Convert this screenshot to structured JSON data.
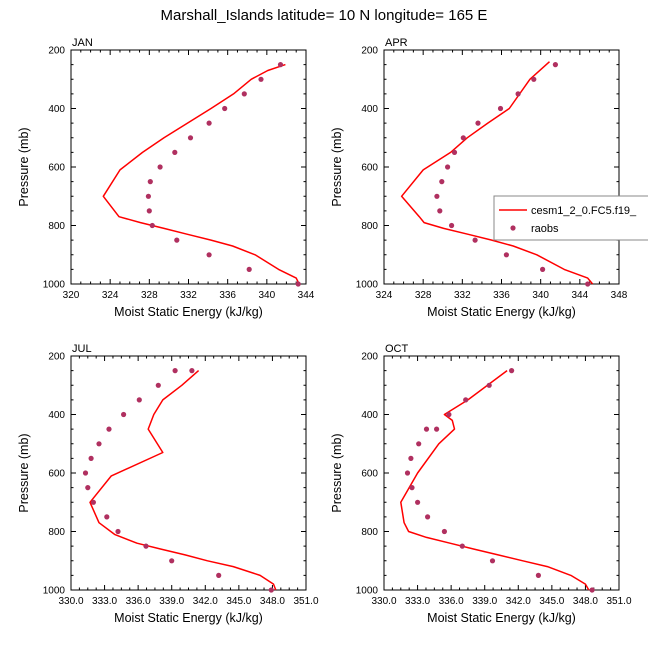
{
  "title": "Marshall_Islands  latitude= 10 N longitude= 165 E",
  "colors": {
    "model_line": "#ff0000",
    "obs_marker": "#b03060",
    "axis": "#000000"
  },
  "legend": {
    "model_label": "cesm1_2_0.FC5.f19_",
    "obs_label": "raobs"
  },
  "chart_data": [
    {
      "type": "line",
      "panel": "JAN",
      "xlabel": "Moist Static Energy (kJ/kg)",
      "ylabel": "Pressure (mb)",
      "xlim": [
        320,
        344
      ],
      "ylim": [
        1000,
        200
      ],
      "xticks": [
        320,
        324,
        328,
        332,
        336,
        340,
        344
      ],
      "xtick_labels": [
        "320",
        "324",
        "328",
        "332",
        "336",
        "340",
        "344"
      ],
      "yticks": [
        200,
        400,
        600,
        800,
        1000
      ],
      "ytick_labels": [
        "200",
        "400",
        "600",
        "800",
        "1000"
      ],
      "series": [
        {
          "name": "cesm1_2_0.FC5.f19_",
          "style": "line",
          "x": [
            343.3,
            343.0,
            341.2,
            338.8,
            336.5,
            334.3,
            331.9,
            329.5,
            327.1,
            324.9,
            323.3,
            325.0,
            327.3,
            329.5,
            331.9,
            334.3,
            336.6,
            338.4,
            340.1,
            341.9
          ],
          "y": [
            1000,
            980,
            950,
            900,
            870,
            850,
            830,
            810,
            790,
            770,
            700,
            610,
            550,
            500,
            450,
            400,
            350,
            300,
            270,
            250
          ]
        },
        {
          "name": "raobs",
          "style": "markers",
          "x": [
            343.2,
            338.2,
            334.1,
            330.8,
            328.3,
            328.0,
            327.9,
            328.1,
            329.1,
            330.6,
            332.2,
            334.1,
            335.7,
            337.7,
            339.4,
            341.4
          ],
          "y": [
            1000,
            950,
            900,
            850,
            800,
            750,
            700,
            650,
            600,
            550,
            500,
            450,
            400,
            350,
            300,
            250
          ]
        }
      ]
    },
    {
      "type": "line",
      "panel": "APR",
      "xlabel": "Moist Static Energy (kJ/kg)",
      "ylabel": "Pressure (mb)",
      "xlim": [
        324,
        348
      ],
      "ylim": [
        1000,
        200
      ],
      "xticks": [
        324,
        328,
        332,
        336,
        340,
        344,
        348
      ],
      "xtick_labels": [
        "324",
        "328",
        "332",
        "336",
        "340",
        "344",
        "348"
      ],
      "yticks": [
        200,
        400,
        600,
        800,
        1000
      ],
      "ytick_labels": [
        "200",
        "400",
        "600",
        "800",
        "1000"
      ],
      "series": [
        {
          "name": "cesm1_2_0.FC5.f19_",
          "style": "line",
          "x": [
            345.3,
            344.8,
            342.4,
            339.6,
            337.2,
            335.0,
            332.6,
            330.1,
            328.1,
            327.6,
            325.8,
            328.0,
            330.8,
            332.5,
            334.6,
            336.8,
            338.9,
            340.9
          ],
          "y": [
            1000,
            980,
            950,
            900,
            870,
            850,
            830,
            810,
            790,
            770,
            700,
            610,
            550,
            500,
            450,
            400,
            300,
            240
          ]
        },
        {
          "name": "raobs",
          "style": "markers",
          "x": [
            344.8,
            340.2,
            336.5,
            333.3,
            330.9,
            329.7,
            329.4,
            329.9,
            330.5,
            331.2,
            332.1,
            333.6,
            335.9,
            337.7,
            339.3,
            341.5
          ],
          "y": [
            1000,
            950,
            900,
            850,
            800,
            750,
            700,
            650,
            600,
            550,
            500,
            450,
            400,
            350,
            300,
            250
          ]
        }
      ]
    },
    {
      "type": "line",
      "panel": "JUL",
      "xlabel": "Moist Static Energy (kJ/kg)",
      "ylabel": "Pressure (mb)",
      "xlim": [
        330,
        351
      ],
      "ylim": [
        1000,
        200
      ],
      "xticks": [
        330,
        333,
        336,
        339,
        342,
        345,
        348,
        351
      ],
      "xtick_labels": [
        "330.0",
        "333.0",
        "336.0",
        "339.0",
        "342.0",
        "345.0",
        "348.0",
        "351.0"
      ],
      "yticks": [
        200,
        400,
        600,
        800,
        1000
      ],
      "ytick_labels": [
        "200",
        "400",
        "600",
        "800",
        "1000"
      ],
      "series": [
        {
          "name": "cesm1_2_0.FC5.f19_",
          "style": "line",
          "x": [
            348.3,
            348.1,
            346.9,
            344.5,
            342.2,
            340.2,
            338.0,
            335.9,
            333.9,
            332.5,
            331.7,
            333.6,
            338.2,
            336.9,
            337.4,
            338.2,
            339.9,
            341.4
          ],
          "y": [
            1000,
            980,
            950,
            920,
            900,
            880,
            860,
            840,
            810,
            770,
            700,
            610,
            530,
            450,
            400,
            350,
            300,
            250
          ]
        },
        {
          "name": "raobs",
          "style": "markers",
          "x": [
            347.9,
            343.2,
            339.0,
            336.7,
            334.2,
            333.2,
            332.0,
            331.5,
            331.3,
            331.8,
            332.5,
            333.4,
            334.7,
            336.1,
            337.8,
            339.3,
            340.8
          ],
          "y": [
            1000,
            950,
            900,
            850,
            800,
            750,
            700,
            650,
            600,
            550,
            500,
            450,
            400,
            350,
            300,
            250,
            250
          ]
        }
      ]
    },
    {
      "type": "line",
      "panel": "OCT",
      "xlabel": "Moist Static Energy (kJ/kg)",
      "ylabel": "Pressure (mb)",
      "xlim": [
        330,
        351
      ],
      "ylim": [
        1000,
        200
      ],
      "xticks": [
        330,
        333,
        336,
        339,
        342,
        345,
        348,
        351
      ],
      "xtick_labels": [
        "330.0",
        "333.0",
        "336.0",
        "339.0",
        "342.0",
        "345.0",
        "348.0",
        "351.0"
      ],
      "yticks": [
        200,
        400,
        600,
        800,
        1000
      ],
      "ytick_labels": [
        "200",
        "400",
        "600",
        "800",
        "1000"
      ],
      "series": [
        {
          "name": "cesm1_2_0.FC5.f19_",
          "style": "line",
          "x": [
            348.3,
            348.0,
            346.7,
            344.6,
            342.4,
            340.2,
            338.0,
            335.9,
            333.8,
            332.2,
            331.8,
            331.5,
            333.0,
            334.9,
            336.3,
            336.1,
            335.4,
            337.5,
            341.0
          ],
          "y": [
            1000,
            980,
            950,
            920,
            900,
            880,
            860,
            840,
            820,
            800,
            770,
            700,
            600,
            500,
            450,
            420,
            400,
            350,
            250
          ]
        },
        {
          "name": "raobs",
          "style": "markers",
          "x": [
            348.6,
            343.8,
            339.7,
            337.0,
            335.4,
            333.9,
            333.0,
            332.5,
            332.1,
            332.4,
            333.1,
            333.8,
            334.7,
            335.8,
            337.3,
            339.4,
            341.4
          ],
          "y": [
            1000,
            950,
            900,
            850,
            800,
            750,
            700,
            650,
            600,
            550,
            500,
            450,
            450,
            400,
            350,
            300,
            250
          ]
        }
      ]
    }
  ]
}
